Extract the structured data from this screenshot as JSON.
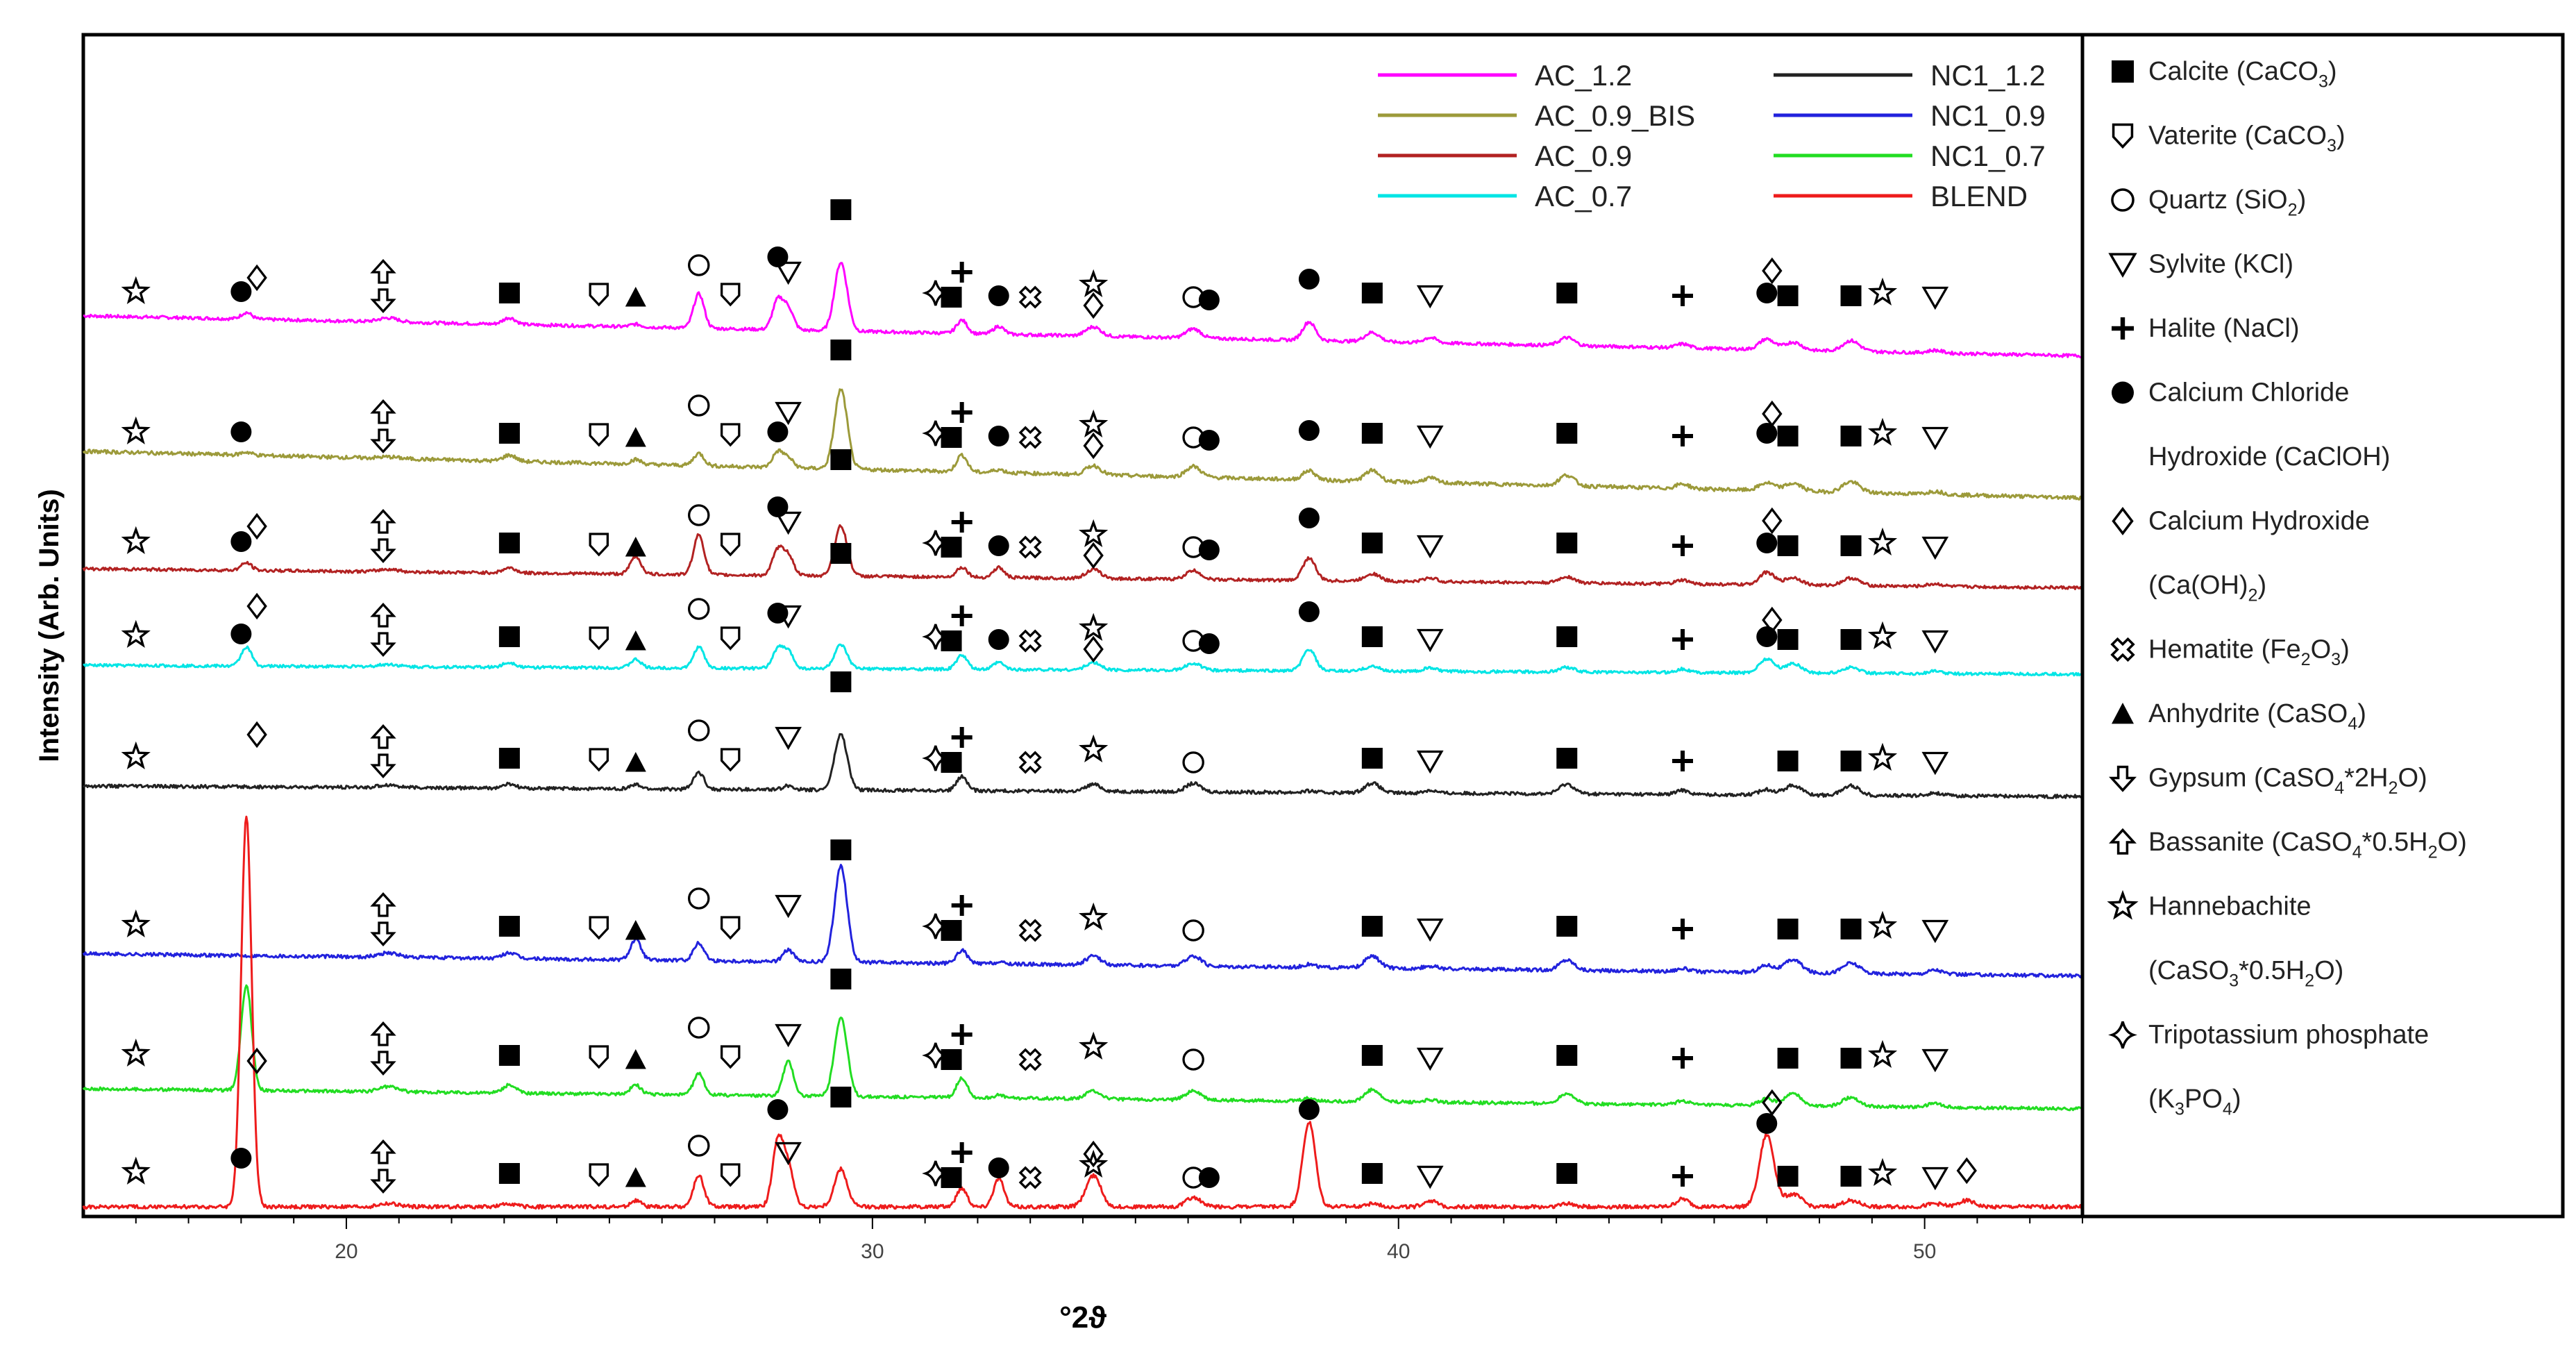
{
  "chart_data": {
    "type": "line",
    "title": "",
    "xlabel": "°2ϑ",
    "ylabel": "Intensity (Arb. Units)",
    "xlim": [
      15,
      53
    ],
    "x_ticks": [
      20,
      30,
      40,
      50
    ],
    "x_tick_labels": [
      "20",
      "30",
      "40",
      "50"
    ],
    "grid": false,
    "legend_position": "top-right",
    "peaks": [
      {
        "x": 18.1,
        "w": 0.1
      },
      {
        "x": 20.8,
        "w": 0.18
      },
      {
        "x": 23.1,
        "w": 0.12
      },
      {
        "x": 25.5,
        "w": 0.1
      },
      {
        "x": 26.7,
        "w": 0.1
      },
      {
        "x": 28.2,
        "w": 0.1
      },
      {
        "x": 28.4,
        "w": 0.1
      },
      {
        "x": 29.4,
        "w": 0.12
      },
      {
        "x": 31.7,
        "w": 0.1
      },
      {
        "x": 32.4,
        "w": 0.1
      },
      {
        "x": 34.2,
        "w": 0.14
      },
      {
        "x": 36.1,
        "w": 0.14
      },
      {
        "x": 38.3,
        "w": 0.12
      },
      {
        "x": 39.5,
        "w": 0.14
      },
      {
        "x": 40.6,
        "w": 0.12
      },
      {
        "x": 43.2,
        "w": 0.14
      },
      {
        "x": 45.4,
        "w": 0.12
      },
      {
        "x": 47.0,
        "w": 0.14
      },
      {
        "x": 47.5,
        "w": 0.16
      },
      {
        "x": 48.6,
        "w": 0.16
      },
      {
        "x": 50.2,
        "w": 0.14
      },
      {
        "x": 50.8,
        "w": 0.14
      }
    ],
    "series": [
      {
        "name": "AC_1.2",
        "color": "#ff00ff",
        "baseline": 1.4,
        "slope": -0.04,
        "amps": [
          0.25,
          0.15,
          0.25,
          0.1,
          1.3,
          1.1,
          0.8,
          2.6,
          0.5,
          0.3,
          0.35,
          0.35,
          0.7,
          0.35,
          0.2,
          0.3,
          0.15,
          0.4,
          0.3,
          0.4,
          0.1,
          0
        ]
      },
      {
        "name": "AC_0.9_BIS",
        "color": "#9c9a3a",
        "baseline": 1.5,
        "slope": -0.04,
        "amps": [
          0.1,
          0.05,
          0.2,
          0.15,
          0.4,
          0.5,
          0.3,
          2.6,
          0.55,
          0.1,
          0.3,
          0.35,
          0.3,
          0.35,
          0.15,
          0.35,
          0.15,
          0.25,
          0.25,
          0.35,
          0.1,
          0
        ]
      },
      {
        "name": "AC_0.9",
        "color": "#b22222",
        "baseline": 1.3,
        "slope": -0.02,
        "amps": [
          0.3,
          0.1,
          0.2,
          0.7,
          1.6,
          1.0,
          0.8,
          2.0,
          0.4,
          0.4,
          0.35,
          0.35,
          0.9,
          0.3,
          0.15,
          0.25,
          0.15,
          0.5,
          0.3,
          0.3,
          0.1,
          0
        ]
      },
      {
        "name": "AC_0.7",
        "color": "#00e5e5",
        "baseline": 1.2,
        "slope": -0.01,
        "amps": [
          0.8,
          0.1,
          0.2,
          0.35,
          0.9,
          0.8,
          0.7,
          1.0,
          0.6,
          0.3,
          0.3,
          0.3,
          0.9,
          0.2,
          0.15,
          0.2,
          0.15,
          0.6,
          0.4,
          0.25,
          0.1,
          0
        ]
      },
      {
        "name": "NC1_1.2",
        "color": "#222222",
        "baseline": 1.2,
        "slope": -0.01,
        "amps": [
          0,
          0.1,
          0.15,
          0.15,
          0.6,
          0,
          0.15,
          2.0,
          0.5,
          0,
          0.25,
          0.3,
          0.05,
          0.35,
          0.1,
          0.35,
          0.15,
          0.2,
          0.35,
          0.35,
          0.1,
          0
        ]
      },
      {
        "name": "NC1_0.9",
        "color": "#2222dd",
        "baseline": 1.2,
        "slope": -0.02,
        "amps": [
          0,
          0.15,
          0.2,
          0.7,
          0.6,
          0,
          0.4,
          3.3,
          0.45,
          0.05,
          0.3,
          0.35,
          0.1,
          0.4,
          0.1,
          0.35,
          0.1,
          0.25,
          0.45,
          0.35,
          0.15,
          0
        ]
      },
      {
        "name": "NC1_0.7",
        "color": "#22dd22",
        "baseline": 1.0,
        "slope": -0.02,
        "amps": [
          4.0,
          0.2,
          0.3,
          0.35,
          0.8,
          0,
          1.3,
          3.0,
          0.75,
          0.1,
          0.3,
          0.35,
          0.1,
          0.45,
          0.1,
          0.4,
          0.15,
          0.25,
          0.45,
          0.35,
          0.15,
          0
        ]
      },
      {
        "name": "BLEND",
        "color": "#ee1c1c",
        "baseline": 1.0,
        "slope": 0.0,
        "amps": [
          12.5,
          0.1,
          0.1,
          0.2,
          1.0,
          2.1,
          1.3,
          1.2,
          0.6,
          0.9,
          1.0,
          0.3,
          2.7,
          0.1,
          0.2,
          0.1,
          0.25,
          2.3,
          0.4,
          0.2,
          0.1,
          0.2
        ]
      }
    ]
  },
  "legend": {
    "entries": [
      {
        "name": "AC_1.2",
        "color": "#ff00ff"
      },
      {
        "name": "AC_0.9_BIS",
        "color": "#9c9a3a"
      },
      {
        "name": "AC_0.9",
        "color": "#b22222"
      },
      {
        "name": "AC_0.7",
        "color": "#00e5e5"
      },
      {
        "name": "NC1_1.2",
        "color": "#222222"
      },
      {
        "name": "NC1_0.9",
        "color": "#2222dd"
      },
      {
        "name": "NC1_0.7",
        "color": "#22dd22"
      },
      {
        "name": "BLEND",
        "color": "#ee1c1c"
      }
    ]
  },
  "phases": {
    "calcite": {
      "symbol": "filled-square-icon",
      "line1": [
        "Calcite (CaCO",
        "3",
        ")"
      ]
    },
    "vaterite": {
      "symbol": "vaterite-shield-icon",
      "line1": [
        "Vaterite (CaCO",
        "3",
        ")"
      ]
    },
    "quartz": {
      "symbol": "open-circle-icon",
      "line1": [
        "Quartz (SiO",
        "2",
        ")"
      ]
    },
    "sylvite": {
      "symbol": "open-down-triangle-icon",
      "line1": [
        "Sylvite (KCl)"
      ]
    },
    "halite": {
      "symbol": "plus-icon",
      "line1": [
        "Halite (NaCl)"
      ]
    },
    "caclohydroxide": {
      "symbol": "filled-circle-icon",
      "line1": [
        "Calcium Chloride"
      ],
      "line2": [
        "Hydroxide (CaClOH)"
      ]
    },
    "calciumhydroxide": {
      "symbol": "open-diamond-icon",
      "line1": [
        "Calcium Hydroxide"
      ],
      "line2": [
        "(Ca(OH)",
        "2",
        ")"
      ]
    },
    "hematite": {
      "symbol": "hematite-cross-icon",
      "line1": [
        "Hematite (Fe",
        "2",
        "O",
        "3",
        ")"
      ]
    },
    "anhydrite": {
      "symbol": "filled-up-triangle-icon",
      "line1": [
        "Anhydrite (CaSO",
        "4",
        ")"
      ]
    },
    "gypsum": {
      "symbol": "down-arrow-icon",
      "line1": [
        "Gypsum (CaSO",
        "4",
        "*2H",
        "2",
        "O)"
      ]
    },
    "bassanite": {
      "symbol": "up-arrow-icon",
      "line1": [
        "Bassanite (CaSO",
        "4",
        "*0.5H",
        "2",
        "O)"
      ]
    },
    "hannebachite": {
      "symbol": "star-icon",
      "line1": [
        "Hannebachite"
      ],
      "line2": [
        "(CaSO",
        "3",
        "*0.5H",
        "2",
        "O)"
      ]
    },
    "tripotassium": {
      "symbol": "four-point-star-icon",
      "line1": [
        "Tripotassium phosphate"
      ],
      "line2": [
        "(K",
        "3",
        "PO",
        "4",
        ")"
      ]
    }
  },
  "phase_order": [
    "calcite",
    "vaterite",
    "quartz",
    "sylvite",
    "halite",
    "caclohydroxide",
    "calciumhydroxide",
    "hematite",
    "anhydrite",
    "gypsum",
    "bassanite",
    "hannebachite",
    "tripotassium"
  ]
}
